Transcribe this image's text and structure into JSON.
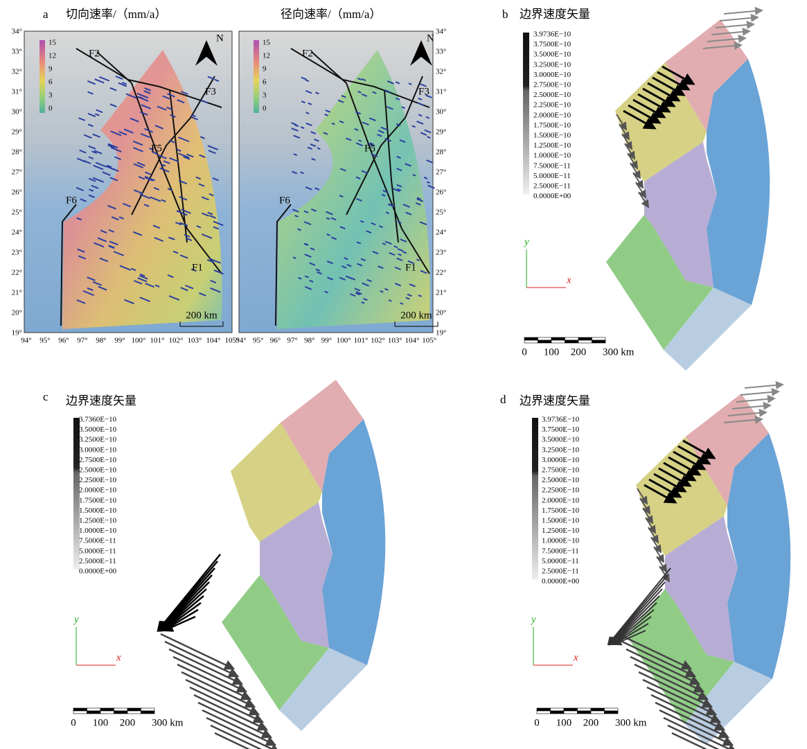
{
  "panel_a": {
    "label": "a",
    "left_title": "切向速率/（mm/a）",
    "right_title": "径向速率/（mm/a）",
    "colorbar_ticks": [
      15,
      12,
      9,
      6,
      3,
      0
    ],
    "north": "N",
    "faults": [
      "F2",
      "F3",
      "F5",
      "F6",
      "F1"
    ],
    "lat_labels": [
      "34°",
      "33°",
      "32°",
      "31°",
      "30°",
      "29°",
      "28°",
      "27°",
      "26°",
      "25°",
      "24°",
      "23°",
      "22°",
      "21°",
      "20°",
      "19°"
    ],
    "lon_labels": [
      "94°",
      "95°",
      "96°",
      "97°",
      "98°",
      "99°",
      "100°",
      "101°",
      "102°",
      "103°",
      "104°",
      "105°"
    ],
    "scale": "200 km"
  },
  "panel_b": {
    "label": "b",
    "title": "边界速度矢量",
    "legend": [
      "3.9736E−10",
      "3.7500E−10",
      "3.5000E−10",
      "3.2500E−10",
      "3.0000E−10",
      "2.7500E−10",
      "2.5000E−10",
      "2.2500E−10",
      "2.0000E−10",
      "1.7500E−10",
      "1.5000E−10",
      "1.2500E−10",
      "1.0000E−10",
      "7.5000E−11",
      "5.0000E−11",
      "2.5000E−11",
      "0.0000E+00"
    ],
    "axis_x": "x",
    "axis_y": "y",
    "scale_labels": [
      "0",
      "100",
      "200",
      "300 km"
    ]
  },
  "panel_c": {
    "label": "c",
    "title": "边界速度矢量",
    "legend": [
      "3.7360E−10",
      "3.5000E−10",
      "3.2500E−10",
      "3.0000E−10",
      "2.7500E−10",
      "2.5000E−10",
      "2.2500E−10",
      "2.0000E−10",
      "1.7500E−10",
      "1.5000E−10",
      "1.2500E−10",
      "1.0000E−10",
      "7.5000E−11",
      "5.0000E−11",
      "2.5000E−11",
      "0.0000E+00"
    ],
    "axis_x": "x",
    "axis_y": "y",
    "scale_labels": [
      "0",
      "100",
      "200",
      "300 km"
    ]
  },
  "panel_d": {
    "label": "d",
    "title": "边界速度矢量",
    "legend": [
      "3.9736E−10",
      "3.7500E−10",
      "3.5000E−10",
      "3.2500E−10",
      "3.0000E−10",
      "2.7500E−10",
      "2.5000E−10",
      "2.2500E−10",
      "2.0000E−10",
      "1.7500E−10",
      "1.5000E−10",
      "1.2500E−10",
      "1.0000E−10",
      "7.5000E−11",
      "5.0000E−11",
      "2.5000E−11",
      "0.0000E+00"
    ],
    "axis_x": "x",
    "axis_y": "y",
    "scale_labels": [
      "0",
      "100",
      "200",
      "300 km"
    ]
  }
}
